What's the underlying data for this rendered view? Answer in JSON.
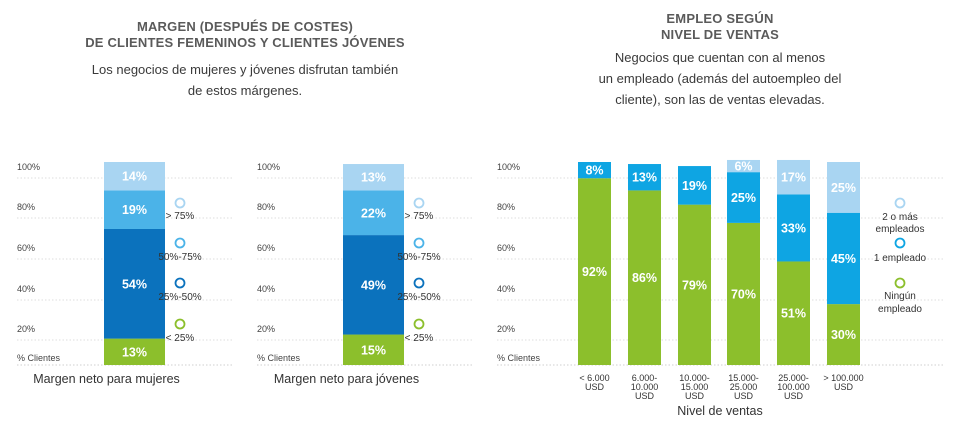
{
  "left_panel": {
    "title_line1": "MARGEN (DESPUÉS DE COSTES)",
    "title_line2": "DE CLIENTES FEMENINOS Y CLIENTES JÓVENES",
    "subtitle_line1": "Los negocios de mujeres y jóvenes disfrutan también",
    "subtitle_line2": "de estos márgenes."
  },
  "right_panel": {
    "title_line1": "EMPLEO SEGÚN",
    "title_line2": "NIVEL DE VENTAS",
    "subtitle_line1": "Negocios que cuentan con al menos",
    "subtitle_line2": "un empleado (además del autoempleo del",
    "subtitle_line3": "cliente), son las de ventas elevadas."
  },
  "chart_data": [
    {
      "type": "bar",
      "stacked": true,
      "xlabel": "Margen neto para mujeres",
      "ylabel": "% Clientes",
      "yticks": [
        "20%",
        "40%",
        "60%",
        "80%",
        "100%"
      ],
      "ylim": [
        0,
        100
      ],
      "categories": [
        "Margen neto para mujeres"
      ],
      "series": [
        {
          "name": "< 25%",
          "values": [
            13
          ],
          "color": "#8cbf2c"
        },
        {
          "name": "25%-50%",
          "values": [
            54
          ],
          "color": "#0b72bd"
        },
        {
          "name": "50%-75%",
          "values": [
            19
          ],
          "color": "#4bb3e8"
        },
        {
          "name": "> 75%",
          "values": [
            14
          ],
          "color": "#a9d5f2"
        }
      ],
      "legend_position": "right"
    },
    {
      "type": "bar",
      "stacked": true,
      "xlabel": "Margen neto para jóvenes",
      "ylabel": "% Clientes",
      "yticks": [
        "20%",
        "40%",
        "60%",
        "80%",
        "100%"
      ],
      "ylim": [
        0,
        100
      ],
      "categories": [
        "Margen neto para jóvenes"
      ],
      "series": [
        {
          "name": "< 25%",
          "values": [
            15
          ],
          "color": "#8cbf2c"
        },
        {
          "name": "25%-50%",
          "values": [
            49
          ],
          "color": "#0b72bd"
        },
        {
          "name": "50%-75%",
          "values": [
            22
          ],
          "color": "#4bb3e8"
        },
        {
          "name": "> 75%",
          "values": [
            13
          ],
          "color": "#a9d5f2"
        }
      ],
      "legend_position": "right"
    },
    {
      "type": "bar",
      "stacked": true,
      "xlabel": "Nivel de ventas",
      "ylabel": "% Clientes",
      "yticks": [
        "20%",
        "40%",
        "60%",
        "80%",
        "100%"
      ],
      "ylim": [
        0,
        100
      ],
      "categories": [
        [
          "< 6.000",
          "USD"
        ],
        [
          "6.000-",
          "10.000",
          "USD"
        ],
        [
          "10.000-",
          "15.000",
          "USD"
        ],
        [
          "15.000-",
          "25.000",
          "USD"
        ],
        [
          "25.000-",
          "100.000",
          "USD"
        ],
        [
          "> 100.000",
          "USD"
        ]
      ],
      "series": [
        {
          "name": "Ningún empleado",
          "label_lines": [
            "Ningún",
            "empleado"
          ],
          "values": [
            92,
            86,
            79,
            70,
            51,
            30
          ],
          "color": "#8cbf2c"
        },
        {
          "name": "1 empleado",
          "label_lines": [
            "1 empleado"
          ],
          "values": [
            8,
            13,
            19,
            25,
            33,
            45
          ],
          "color": "#0ea5e3"
        },
        {
          "name": "2 o más empleados",
          "label_lines": [
            "2 o más",
            "empleados"
          ],
          "values": [
            null,
            null,
            null,
            6,
            17,
            25
          ],
          "color": "#a9d5f2"
        }
      ],
      "legend_position": "right"
    }
  ]
}
